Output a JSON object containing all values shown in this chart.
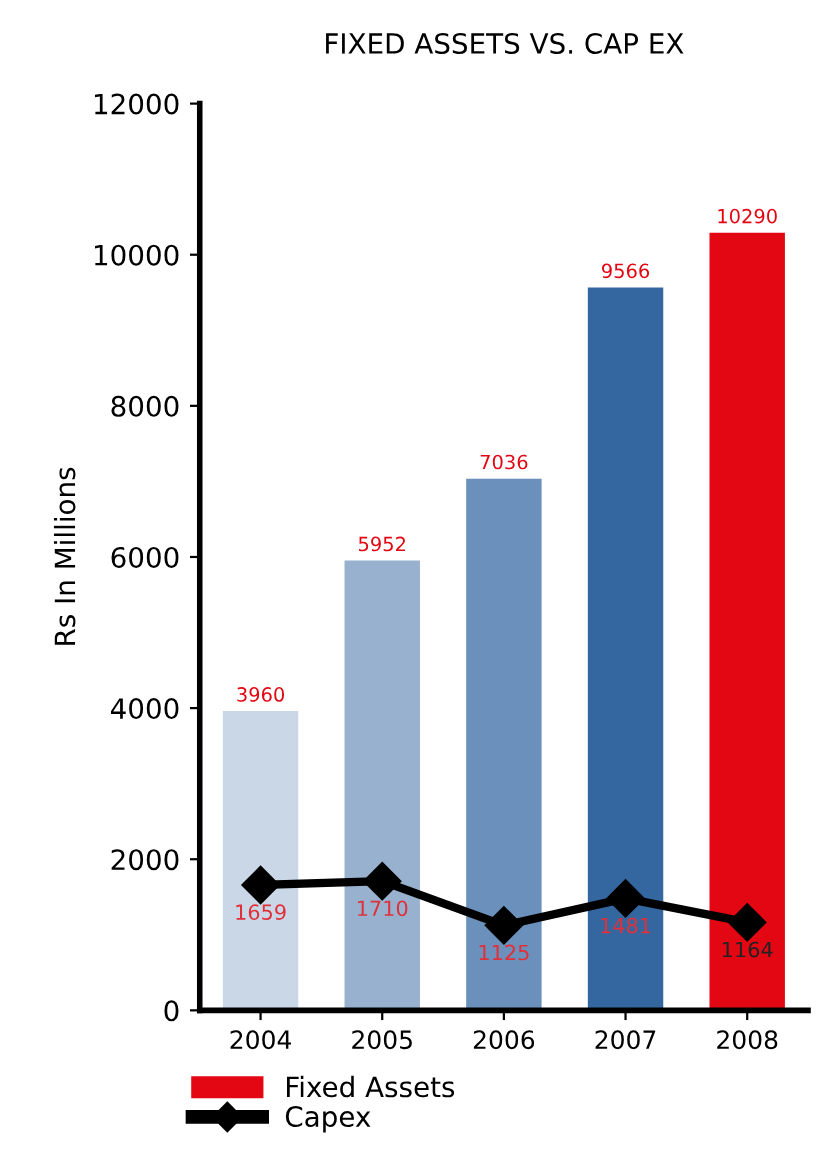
{
  "chart_data": {
    "type": "bar",
    "title": "FIXED ASSETS VS. CAP EX",
    "ylabel": "Rs In Millions",
    "categories": [
      "2004",
      "2005",
      "2006",
      "2007",
      "2008"
    ],
    "series": [
      {
        "name": "Fixed Assets",
        "color": "#e30613",
        "colors": [
          "#c9d7e6",
          "#97b1cf",
          "#6a90bb",
          "#34679f",
          "#e30613"
        ],
        "values": [
          3960,
          5952,
          7036,
          9566,
          10290
        ]
      },
      {
        "name": "Capex",
        "type": "line",
        "color": "#000000",
        "values": [
          1659,
          1710,
          1125,
          1481,
          1164
        ],
        "marker": "diamond"
      }
    ],
    "ylim": [
      0,
      12000
    ],
    "yticks": [
      0,
      2000,
      4000,
      6000,
      8000,
      10000,
      12000
    ],
    "grid": false,
    "legend": "bottom left",
    "data_labels": true
  }
}
